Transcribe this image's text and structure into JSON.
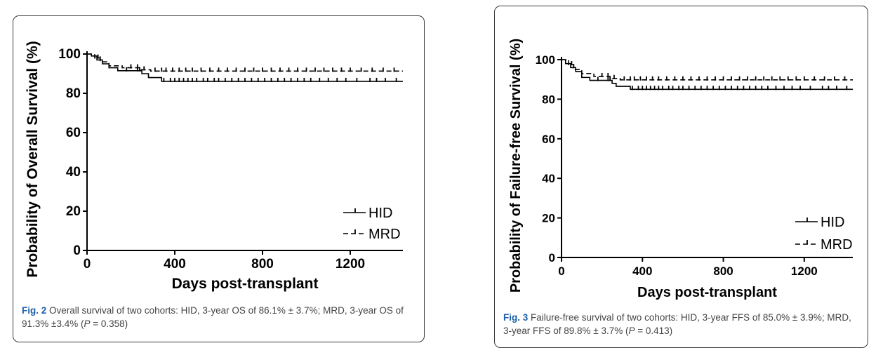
{
  "chart_data": [
    {
      "type": "line",
      "subtype": "kaplan-meier",
      "title": "",
      "xlabel": "Days post-transplant",
      "ylabel": "Probability of Overall Survival (%)",
      "xlim": [
        0,
        1440
      ],
      "ylim": [
        0,
        100
      ],
      "xticks": [
        "0",
        "400",
        "800",
        "1200"
      ],
      "yticks": [
        "0",
        "20",
        "40",
        "60",
        "80",
        "100"
      ],
      "legend_position": "bottom-right",
      "series": [
        {
          "name": "HID",
          "style": "solid",
          "steps": [
            [
              0,
              100
            ],
            [
              20,
              99
            ],
            [
              45,
              97
            ],
            [
              70,
              95
            ],
            [
              100,
              93
            ],
            [
              140,
              91.5
            ],
            [
              250,
              90
            ],
            [
              280,
              88
            ],
            [
              340,
              86.1
            ],
            [
              1440,
              86.1
            ]
          ],
          "censored": [
            60,
            180,
            230,
            240,
            350,
            380,
            400,
            420,
            440,
            460,
            480,
            500,
            530,
            550,
            580,
            600,
            630,
            660,
            690,
            720,
            750,
            780,
            810,
            840,
            870,
            900,
            930,
            960,
            990,
            1020,
            1060,
            1100,
            1140,
            1180,
            1230,
            1290,
            1320,
            1360,
            1410
          ]
        },
        {
          "name": "MRD",
          "style": "dashed",
          "steps": [
            [
              0,
              100
            ],
            [
              35,
              98
            ],
            [
              60,
              96
            ],
            [
              100,
              94
            ],
            [
              160,
              93
            ],
            [
              240,
              92
            ],
            [
              290,
              91.3
            ],
            [
              1440,
              91.3
            ]
          ],
          "censored": [
            50,
            200,
            230,
            260,
            310,
            340,
            360,
            390,
            420,
            450,
            480,
            520,
            560,
            600,
            640,
            680,
            720,
            760,
            800,
            840,
            880,
            920,
            960,
            1000,
            1040,
            1080,
            1120,
            1160,
            1200,
            1250,
            1300,
            1350,
            1400
          ]
        }
      ]
    },
    {
      "type": "line",
      "subtype": "kaplan-meier",
      "title": "",
      "xlabel": "Days post-transplant",
      "ylabel": "Probability of Failure-free Survival (%)",
      "xlim": [
        0,
        1440
      ],
      "ylim": [
        0,
        100
      ],
      "xticks": [
        "0",
        "400",
        "800",
        "1200"
      ],
      "yticks": [
        "0",
        "20",
        "40",
        "60",
        "80",
        "100"
      ],
      "legend_position": "bottom-right",
      "series": [
        {
          "name": "HID",
          "style": "solid",
          "steps": [
            [
              0,
              100
            ],
            [
              20,
              98
            ],
            [
              45,
              96
            ],
            [
              70,
              94
            ],
            [
              100,
              91
            ],
            [
              140,
              89.5
            ],
            [
              250,
              88
            ],
            [
              270,
              86.5
            ],
            [
              340,
              85
            ],
            [
              1440,
              85
            ]
          ],
          "censored": [
            60,
            180,
            230,
            240,
            350,
            380,
            400,
            420,
            440,
            460,
            480,
            500,
            530,
            550,
            580,
            600,
            630,
            660,
            690,
            720,
            750,
            780,
            810,
            840,
            870,
            900,
            930,
            960,
            990,
            1020,
            1060,
            1100,
            1140,
            1180,
            1230,
            1290,
            1320,
            1360,
            1410
          ]
        },
        {
          "name": "MRD",
          "style": "dashed",
          "steps": [
            [
              0,
              100
            ],
            [
              35,
              97.5
            ],
            [
              60,
              95
            ],
            [
              100,
              93
            ],
            [
              160,
              91.5
            ],
            [
              240,
              90.5
            ],
            [
              290,
              89.8
            ],
            [
              1440,
              89.8
            ]
          ],
          "censored": [
            50,
            200,
            230,
            260,
            310,
            340,
            360,
            390,
            420,
            450,
            480,
            520,
            560,
            600,
            640,
            680,
            720,
            760,
            800,
            840,
            880,
            920,
            960,
            1000,
            1040,
            1080,
            1120,
            1160,
            1200,
            1250,
            1300,
            1350,
            1400
          ]
        }
      ]
    }
  ],
  "captions": [
    {
      "fig_label": "Fig. 2",
      "text_before_p": " Overall survival of two cohorts: HID, 3-year OS of 86.1% ± 3.7%; MRD, 3-year OS of 91.3% ±3.4% (",
      "p_label": "P",
      "text_after_p": " = 0.358)"
    },
    {
      "fig_label": "Fig. 3",
      "text_before_p": " Failure-free survival of two cohorts: HID, 3-year FFS of 85.0% ± 3.9%; MRD, 3-year FFS of 89.8% ± 3.7% (",
      "p_label": "P",
      "text_after_p": " = 0.413)"
    }
  ]
}
